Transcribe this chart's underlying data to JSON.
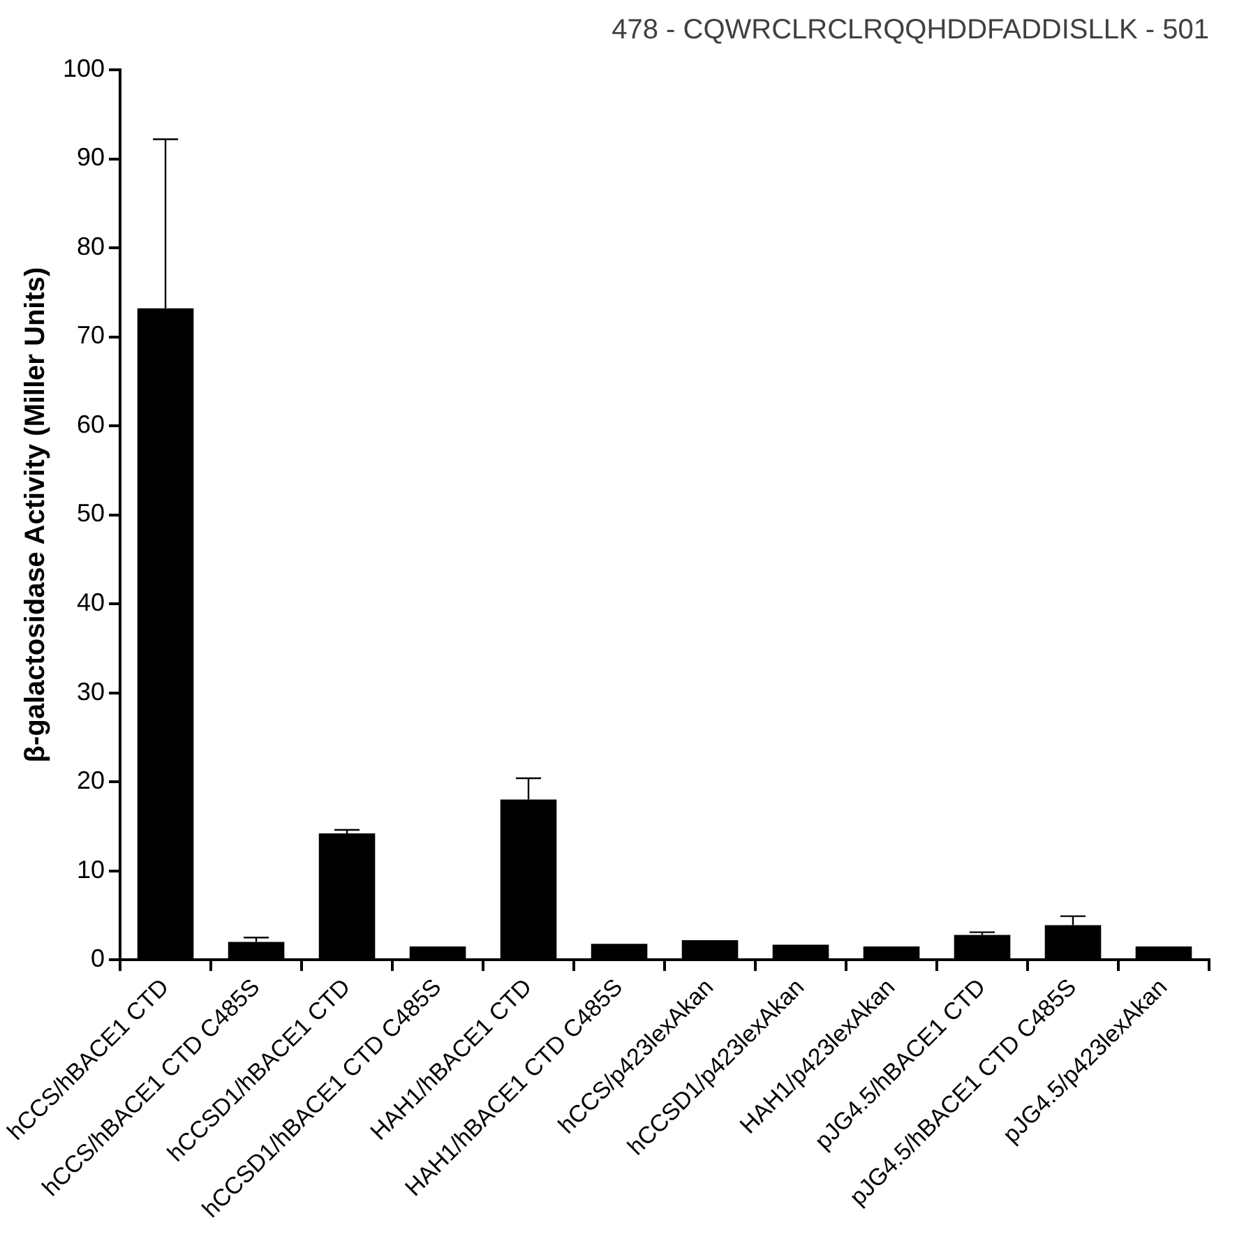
{
  "chart_data": {
    "type": "bar",
    "title": "478 - CQWRCLRCLRQQHDDFADDISLLK - 501",
    "ylabel": "β-galactosidase Activity (Miller Units)",
    "categories": [
      "hCCS/hBACE1 CTD",
      "hCCS/hBACE1 CTD C485S",
      "hCCSD1/hBACE1 CTD",
      "hCCSD1/hBACE1 CTD C485S",
      "HAH1/hBACE1 CTD",
      "HAH1/hBACE1 CTD C485S",
      "hCCS/p423lexAkan",
      "hCCSD1/p423lexAkan",
      "HAH1/p423lexAkan",
      "pJG4.5/hBACE1 CTD",
      "pJG4.5/hBACE1 CTD C485S",
      "pJG4.5/p423lexAkan"
    ],
    "values": [
      73.2,
      2.0,
      14.2,
      1.5,
      18.0,
      1.8,
      2.2,
      1.7,
      1.5,
      2.8,
      3.9,
      1.5
    ],
    "errors": [
      [
        73.2,
        92.2
      ],
      [
        2.0,
        2.5
      ],
      [
        14.2,
        14.6
      ],
      null,
      [
        18.0,
        20.4
      ],
      null,
      null,
      null,
      null,
      [
        2.8,
        3.1
      ],
      [
        3.9,
        4.9
      ],
      null
    ],
    "color": "#000000",
    "ylim": [
      0,
      100
    ],
    "yticks": [
      0,
      10,
      20,
      30,
      40,
      50,
      60,
      70,
      80,
      90,
      100
    ],
    "grid": false,
    "legend": false
  }
}
